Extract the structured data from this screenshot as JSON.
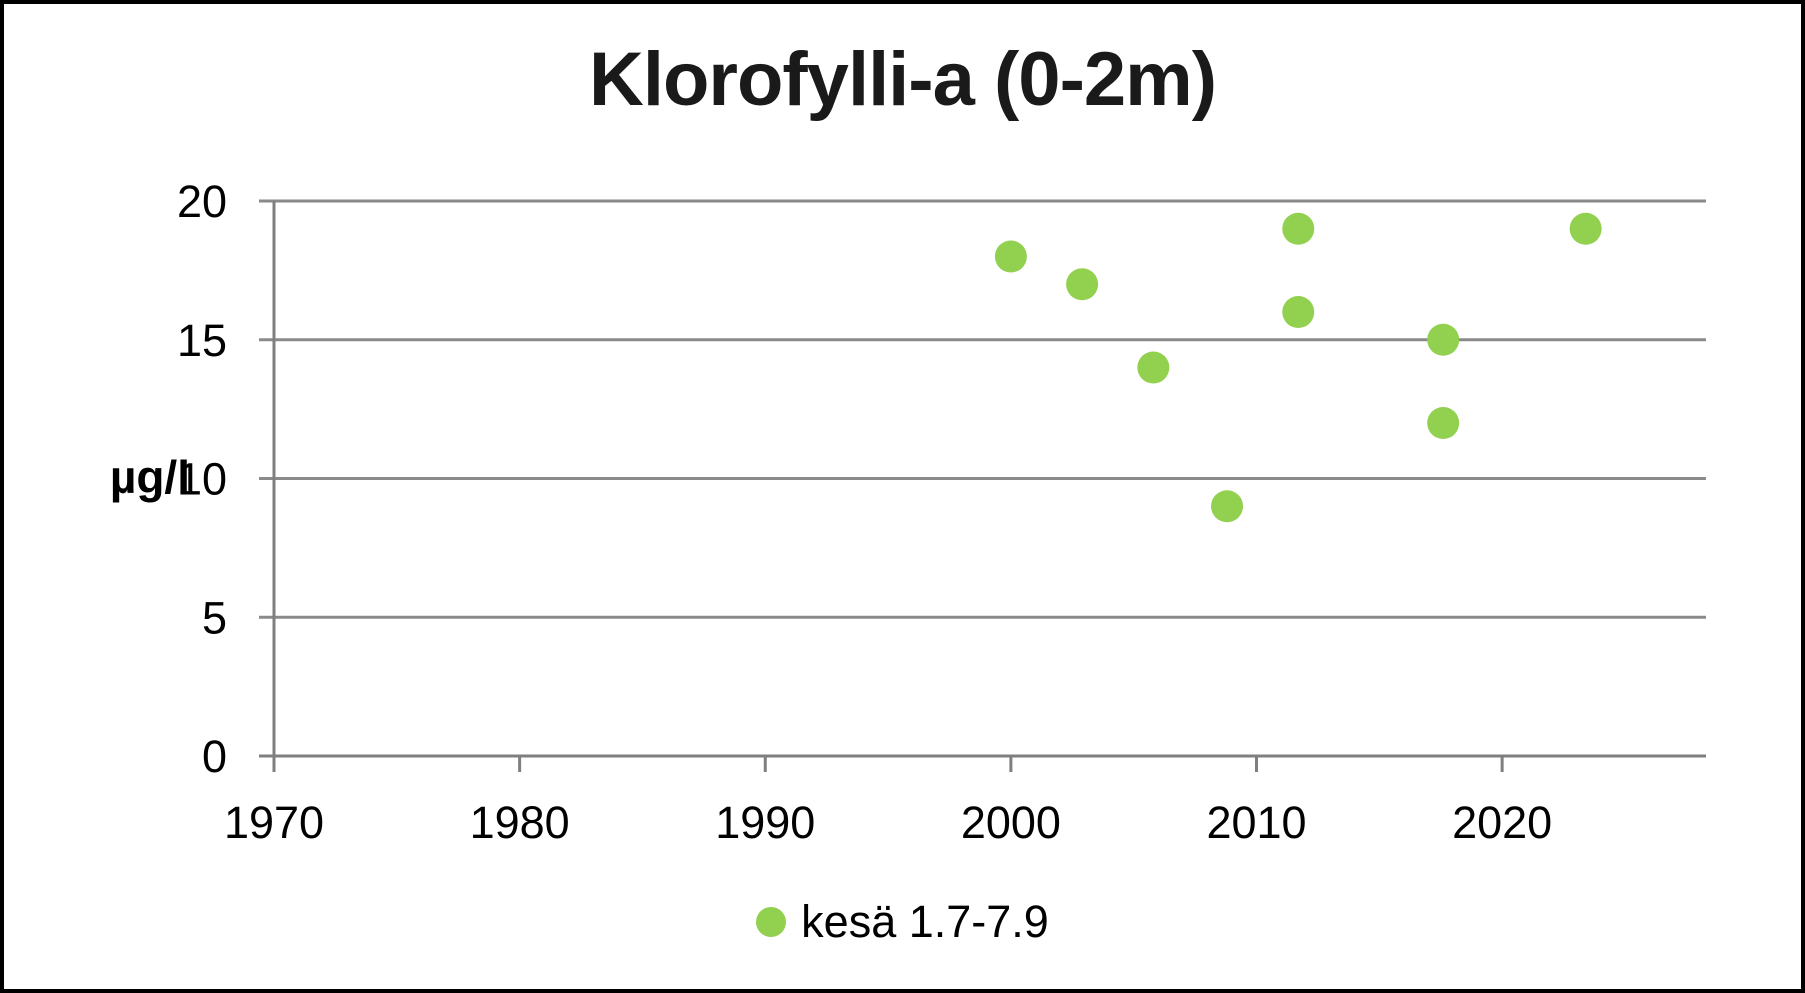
{
  "colors": {
    "point": "#92D050",
    "grid": "#8a8a8a",
    "axis": "#7f7f7f",
    "text": "#000000",
    "border": "#000000"
  },
  "chart_data": {
    "type": "scatter",
    "title": "Klorofylli-a (0-2m)",
    "xlabel": "",
    "ylabel": "µg/l",
    "xlim": [
      1970,
      2028.3
    ],
    "ylim": [
      0,
      20
    ],
    "x_ticks": [
      1970,
      1980,
      1990,
      2000,
      2010,
      2020
    ],
    "y_ticks": [
      0,
      5,
      10,
      15,
      20
    ],
    "grid": "horizontal",
    "legend_position": "bottom",
    "series": [
      {
        "name": "kesä 1.7-7.9",
        "color": "#92D050",
        "points": [
          {
            "x": 2000.0,
            "y": 18
          },
          {
            "x": 2002.9,
            "y": 17
          },
          {
            "x": 2005.8,
            "y": 14
          },
          {
            "x": 2008.8,
            "y": 9
          },
          {
            "x": 2011.7,
            "y": 19
          },
          {
            "x": 2011.7,
            "y": 16
          },
          {
            "x": 2017.6,
            "y": 15
          },
          {
            "x": 2017.6,
            "y": 12
          },
          {
            "x": 2023.4,
            "y": 19
          }
        ]
      }
    ]
  }
}
